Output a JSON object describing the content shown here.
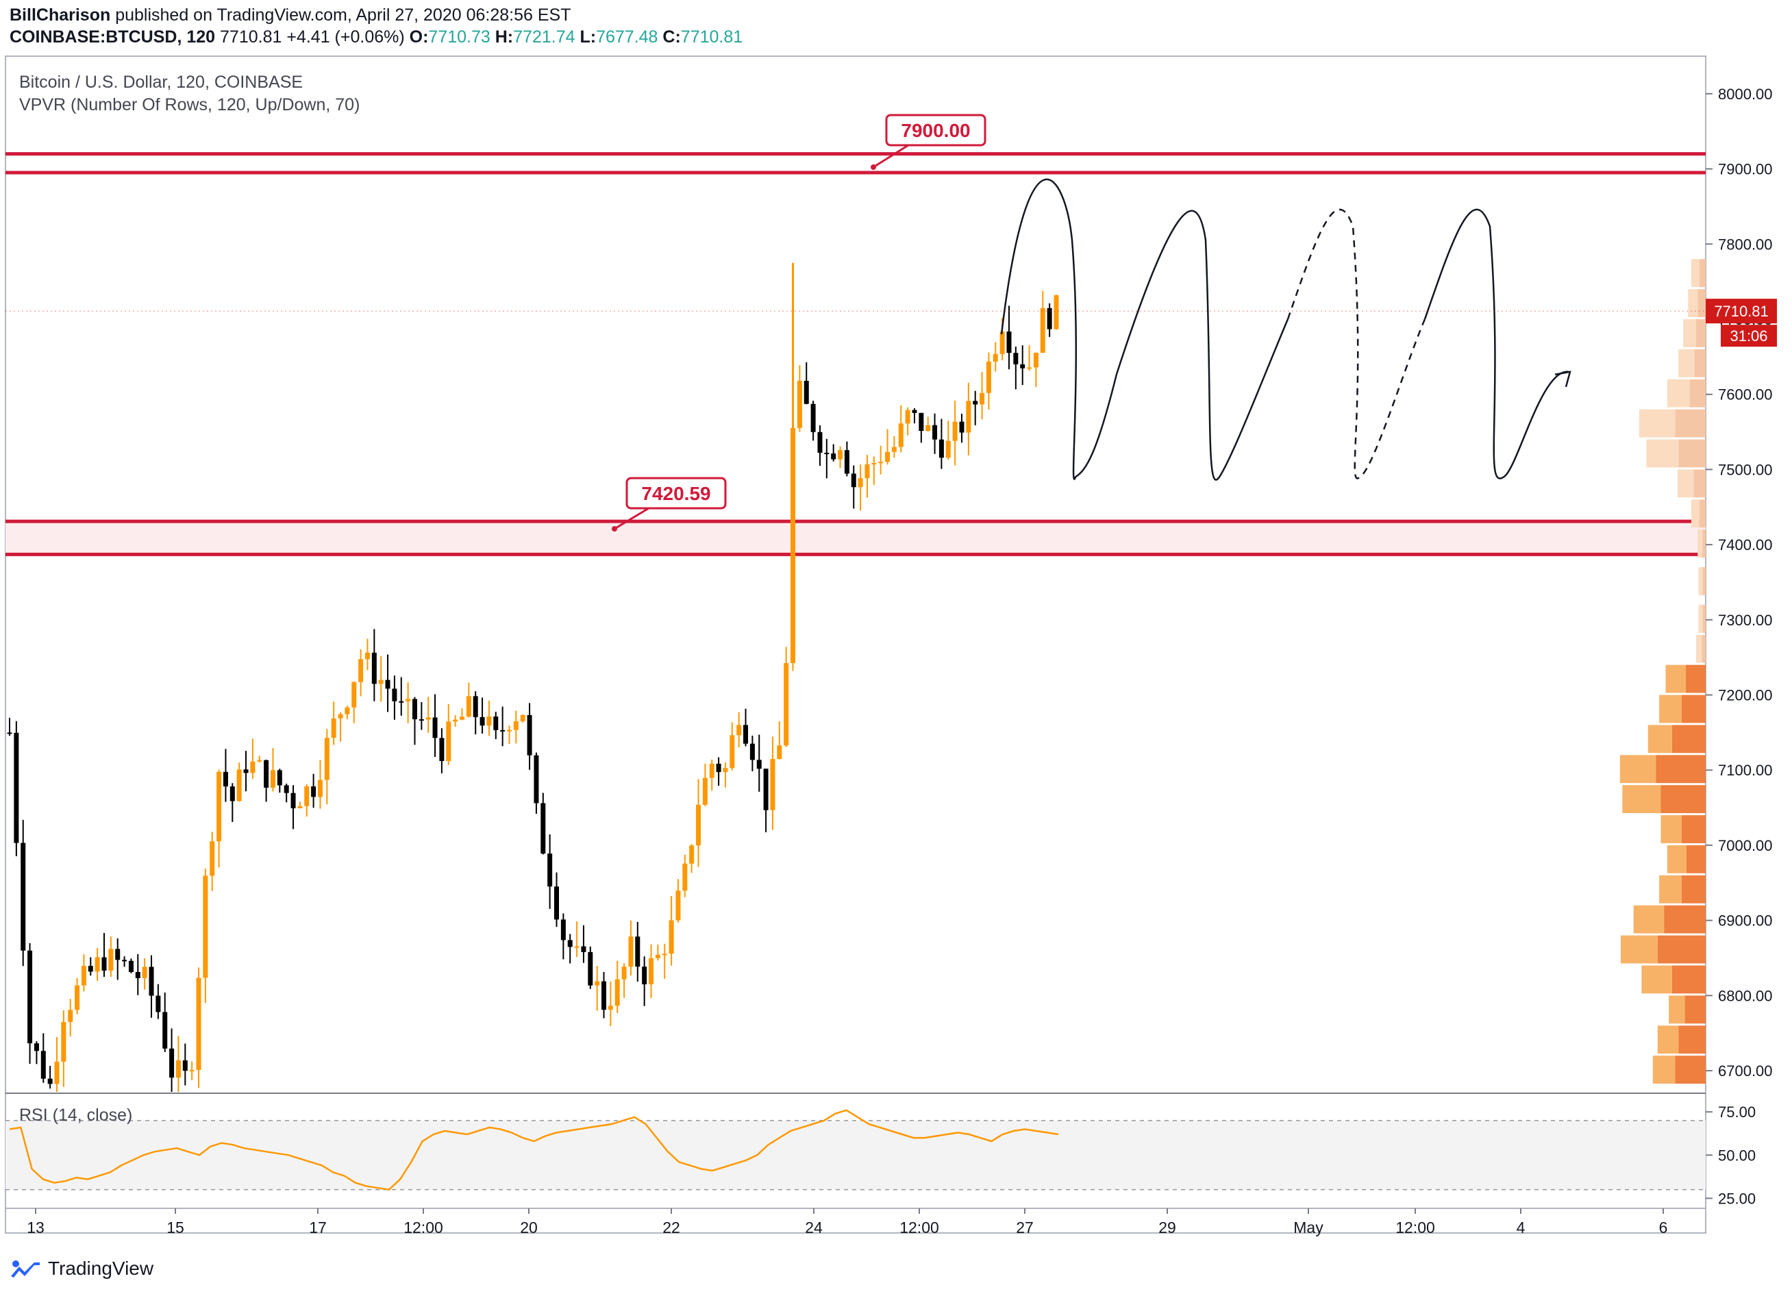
{
  "header": {
    "author": "BillCharison",
    "published_text": "published on TradingView.com, April 27, 2020 06:28:56 EST",
    "symbol": "COINBASE:BTCUSD, 120",
    "last": "7710.81",
    "change": "+4.41 (+0.06%)",
    "ohlc": [
      {
        "label": "O:",
        "value": "7710.73"
      },
      {
        "label": "H:",
        "value": "7721.74"
      },
      {
        "label": "L:",
        "value": "7677.48"
      },
      {
        "label": "C:",
        "value": "7710.81"
      }
    ]
  },
  "legend": {
    "title": "Bitcoin / U.S. Dollar, 120, COINBASE",
    "vpvr": "VPVR (Number Of Rows, 120, Up/Down, 70)",
    "rsi": "RSI (14, close)"
  },
  "branding": {
    "name": "TradingView"
  },
  "colors": {
    "up": "#ff9800",
    "down": "#000000",
    "level": "#d01a3a",
    "rsi": "#ff9800",
    "price_tag": "#d01a1a",
    "vpvr_up_strong": "#f7b267",
    "vpvr_down_strong": "#ee7f3e",
    "vpvr_up_light": "#fbdcc0",
    "vpvr_down_light": "#f5c6a6"
  },
  "chart_data": {
    "type": "candlestick",
    "symbol": "BTCUSD",
    "timeframe": "120",
    "ylim": [
      6670,
      8050
    ],
    "y_ticks": [
      6700,
      6800,
      6900,
      7000,
      7100,
      7200,
      7300,
      7400,
      7500,
      7600,
      7700,
      7800,
      7900,
      8000
    ],
    "y_tick_labels": [
      "6700.00",
      "6800.00",
      "6900.00",
      "7000.00",
      "7100.00",
      "7200.00",
      "7300.00",
      "7400.00",
      "7500.00",
      "7600.00",
      "7700.00",
      "7800.00",
      "7900.00",
      "8000.00"
    ],
    "x_axis_labels": [
      "13",
      "15",
      "17",
      "12:00",
      "20",
      "22",
      "24",
      "12:00",
      "27",
      "29",
      "May",
      "12:00",
      "4",
      "6"
    ],
    "last_price": {
      "label": "7710.81",
      "value": 7710.81
    },
    "countdown": "31:06",
    "resistance_zone": {
      "label": "7900.00",
      "value": 7900.0,
      "upper": 7920,
      "lower": 7895
    },
    "support_zone": {
      "label": "7420.59",
      "value": 7420.59,
      "upper": 7431,
      "lower": 7387
    },
    "projection": {
      "style": "zigzag",
      "peaks": [
        7860,
        7860,
        7860,
        7860
      ],
      "troughs": [
        7490,
        7490,
        7490,
        7490
      ],
      "end": 7630
    },
    "path": [
      [
        0,
        7150
      ],
      [
        3,
        6740
      ],
      [
        6,
        6680
      ],
      [
        8,
        6780
      ],
      [
        11,
        6820
      ],
      [
        14,
        6850
      ],
      [
        17,
        6840
      ],
      [
        20,
        6820
      ],
      [
        22,
        6780
      ],
      [
        24,
        6700
      ],
      [
        26,
        6690
      ],
      [
        27,
        6720
      ],
      [
        29,
        6950
      ],
      [
        31,
        7100
      ],
      [
        33,
        7060
      ],
      [
        35,
        7110
      ],
      [
        37,
        7100
      ],
      [
        40,
        7080
      ],
      [
        42,
        7060
      ],
      [
        45,
        7080
      ],
      [
        48,
        7160
      ],
      [
        50,
        7200
      ],
      [
        52,
        7250
      ],
      [
        54,
        7230
      ],
      [
        56,
        7210
      ],
      [
        58,
        7180
      ],
      [
        60,
        7170
      ],
      [
        62,
        7160
      ],
      [
        64,
        7130
      ],
      [
        66,
        7160
      ],
      [
        68,
        7180
      ],
      [
        70,
        7170
      ],
      [
        72,
        7140
      ],
      [
        74,
        7170
      ],
      [
        76,
        7180
      ],
      [
        78,
        7040
      ],
      [
        80,
        6960
      ],
      [
        82,
        6880
      ],
      [
        84,
        6850
      ],
      [
        86,
        6830
      ],
      [
        88,
        6790
      ],
      [
        90,
        6810
      ],
      [
        92,
        6860
      ],
      [
        94,
        6830
      ],
      [
        96,
        6850
      ],
      [
        98,
        6890
      ],
      [
        100,
        6960
      ],
      [
        102,
        7060
      ],
      [
        104,
        7110
      ],
      [
        106,
        7100
      ],
      [
        108,
        7180
      ],
      [
        110,
        7130
      ],
      [
        112,
        7060
      ],
      [
        114,
        7130
      ],
      [
        115,
        7250
      ],
      [
        116,
        7550
      ],
      [
        117,
        7600
      ],
      [
        119,
        7560
      ],
      [
        121,
        7520
      ],
      [
        123,
        7540
      ],
      [
        125,
        7480
      ],
      [
        127,
        7500
      ],
      [
        129,
        7520
      ],
      [
        131,
        7530
      ],
      [
        133,
        7570
      ],
      [
        135,
        7560
      ],
      [
        137,
        7540
      ],
      [
        139,
        7530
      ],
      [
        141,
        7560
      ],
      [
        143,
        7590
      ],
      [
        145,
        7640
      ],
      [
        147,
        7700
      ],
      [
        149,
        7650
      ],
      [
        151,
        7640
      ],
      [
        153,
        7700
      ],
      [
        155,
        7712
      ]
    ],
    "vpvr": [
      [
        7760,
        0.1,
        0.08
      ],
      [
        7720,
        0.12,
        0.1
      ],
      [
        7680,
        0.16,
        0.12
      ],
      [
        7640,
        0.2,
        0.14
      ],
      [
        7600,
        0.28,
        0.2
      ],
      [
        7560,
        0.45,
        0.38
      ],
      [
        7520,
        0.4,
        0.34
      ],
      [
        7480,
        0.2,
        0.15
      ],
      [
        7440,
        0.1,
        0.08
      ],
      [
        7400,
        0.06,
        0.04
      ],
      [
        7350,
        0.05,
        0.04
      ],
      [
        7300,
        0.05,
        0.04
      ],
      [
        7260,
        0.07,
        0.05
      ],
      [
        7220,
        0.25,
        0.25
      ],
      [
        7180,
        0.28,
        0.3
      ],
      [
        7140,
        0.3,
        0.42
      ],
      [
        7100,
        0.45,
        0.62
      ],
      [
        7060,
        0.48,
        0.56
      ],
      [
        7020,
        0.26,
        0.3
      ],
      [
        6980,
        0.24,
        0.24
      ],
      [
        6940,
        0.28,
        0.3
      ],
      [
        6900,
        0.38,
        0.52
      ],
      [
        6860,
        0.46,
        0.6
      ],
      [
        6820,
        0.38,
        0.42
      ],
      [
        6780,
        0.2,
        0.26
      ],
      [
        6740,
        0.26,
        0.34
      ],
      [
        6700,
        0.28,
        0.38
      ]
    ],
    "rsi": {
      "ylim": [
        20,
        85
      ],
      "y_ticks": [
        25,
        50,
        75
      ],
      "y_tick_labels": [
        "25.00",
        "50.00",
        "75.00"
      ],
      "band": [
        30,
        70
      ],
      "values": [
        65,
        66,
        42,
        36,
        34,
        35,
        37,
        36,
        38,
        40,
        44,
        47,
        50,
        52,
        53,
        54,
        52,
        50,
        55,
        57,
        56,
        54,
        53,
        52,
        51,
        50,
        48,
        46,
        44,
        40,
        38,
        34,
        32,
        31,
        30,
        36,
        46,
        58,
        62,
        64,
        63,
        62,
        64,
        66,
        65,
        63,
        60,
        58,
        61,
        63,
        64,
        65,
        66,
        67,
        68,
        70,
        72,
        68,
        60,
        52,
        46,
        44,
        42,
        41,
        43,
        45,
        47,
        50,
        56,
        60,
        64,
        66,
        68,
        70,
        74,
        76,
        72,
        68,
        66,
        64,
        62,
        60,
        60,
        61,
        62,
        63,
        62,
        60,
        58,
        62,
        64,
        65,
        64,
        63,
        62
      ]
    }
  }
}
